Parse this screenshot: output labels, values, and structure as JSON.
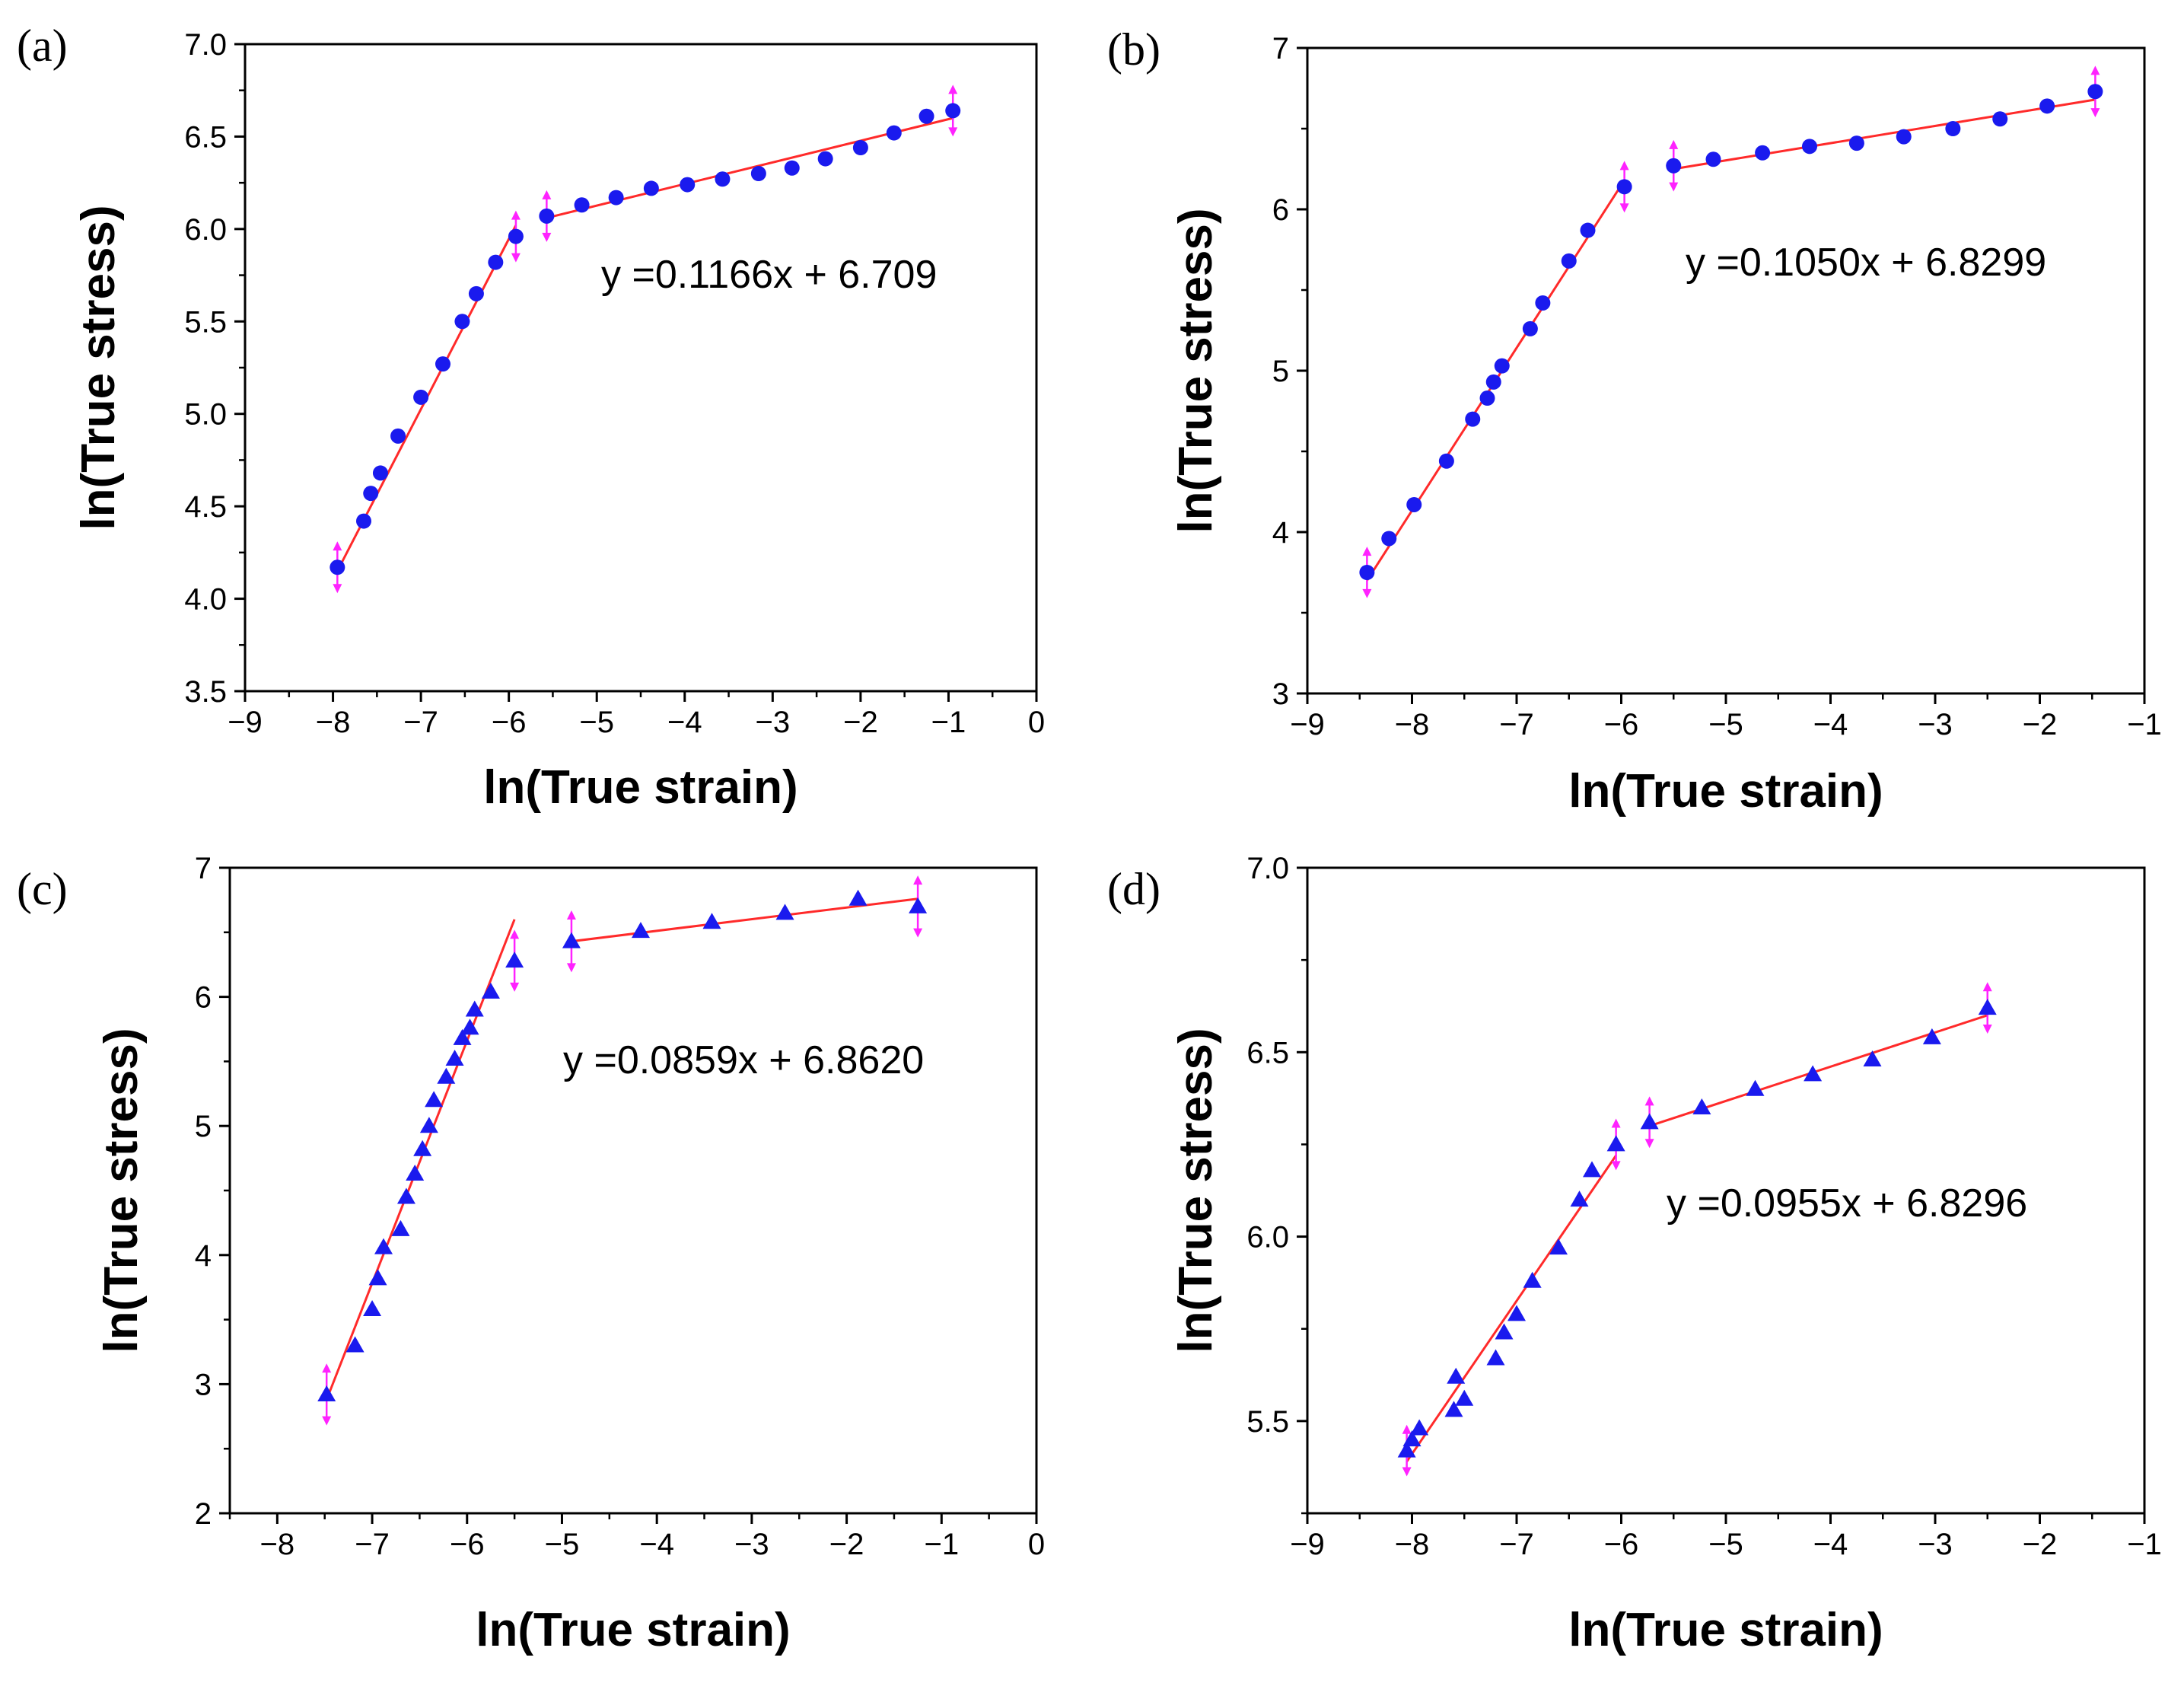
{
  "figure": {
    "panel_count": 4
  },
  "colors": {
    "fit_line": "#ff2a2a",
    "marker": "#1a1aee",
    "error_bar": "#ff22ff",
    "axis": "#000000"
  },
  "chart_data": [
    {
      "panel": "(a)",
      "type": "scatter",
      "marker": "circle",
      "xlabel": "ln(True strain)",
      "ylabel": "ln(True stress)",
      "xlim": [
        -9,
        0
      ],
      "ylim": [
        3.5,
        7.0
      ],
      "xticks": [
        -9,
        -8,
        -7,
        -6,
        -5,
        -4,
        -3,
        -2,
        -1,
        0
      ],
      "xtick_labels": [
        "−9",
        "−8",
        "−7",
        "−6",
        "−5",
        "−4",
        "−3",
        "−2",
        "−1",
        "0"
      ],
      "yticks": [
        3.5,
        4.0,
        4.5,
        5.0,
        5.5,
        6.0,
        6.5,
        7.0
      ],
      "ytick_labels": [
        "3.5",
        "4.0",
        "4.5",
        "5.0",
        "5.5",
        "6.0",
        "6.5",
        "7.0"
      ],
      "equation": "y =0.1166x + 6.709",
      "points": [
        [
          -7.95,
          4.17
        ],
        [
          -7.65,
          4.42
        ],
        [
          -7.57,
          4.57
        ],
        [
          -7.46,
          4.68
        ],
        [
          -7.26,
          4.88
        ],
        [
          -7.0,
          5.09
        ],
        [
          -6.75,
          5.27
        ],
        [
          -6.53,
          5.5
        ],
        [
          -6.37,
          5.65
        ],
        [
          -6.15,
          5.82
        ],
        [
          -5.92,
          5.96
        ],
        [
          -5.57,
          6.07
        ],
        [
          -5.17,
          6.13
        ],
        [
          -4.78,
          6.17
        ],
        [
          -4.38,
          6.22
        ],
        [
          -3.97,
          6.24
        ],
        [
          -3.57,
          6.27
        ],
        [
          -3.16,
          6.3
        ],
        [
          -2.78,
          6.33
        ],
        [
          -2.4,
          6.38
        ],
        [
          -2.0,
          6.44
        ],
        [
          -1.62,
          6.52
        ],
        [
          -1.25,
          6.61
        ],
        [
          -0.95,
          6.64
        ]
      ],
      "fit_lines": [
        {
          "x": [
            -7.95,
            -5.92
          ],
          "y": [
            4.15,
            6.02
          ]
        },
        {
          "x": [
            -5.57,
            -0.95
          ],
          "y": [
            6.06,
            6.6
          ]
        }
      ],
      "error_bar_points": [
        [
          -7.95,
          4.17,
          0.14
        ],
        [
          -5.92,
          5.96,
          0.14
        ],
        [
          -5.57,
          6.07,
          0.14
        ],
        [
          -0.95,
          6.64,
          0.14
        ]
      ]
    },
    {
      "panel": "(b)",
      "type": "scatter",
      "marker": "circle",
      "xlabel": "ln(True strain)",
      "ylabel": "ln(True stress)",
      "xlim": [
        -9,
        -1
      ],
      "ylim": [
        3,
        7
      ],
      "xticks": [
        -9,
        -8,
        -7,
        -6,
        -5,
        -4,
        -3,
        -2,
        -1
      ],
      "xtick_labels": [
        "−9",
        "−8",
        "−7",
        "−6",
        "−5",
        "−4",
        "−3",
        "−2",
        "−1"
      ],
      "yticks": [
        3,
        4,
        5,
        6,
        7
      ],
      "ytick_labels": [
        "3",
        "4",
        "5",
        "6",
        "7"
      ],
      "equation": "y =0.1050x + 6.8299",
      "points": [
        [
          -8.43,
          3.75
        ],
        [
          -8.22,
          3.96
        ],
        [
          -7.98,
          4.17
        ],
        [
          -7.67,
          4.44
        ],
        [
          -7.42,
          4.7
        ],
        [
          -7.28,
          4.83
        ],
        [
          -7.22,
          4.93
        ],
        [
          -7.14,
          5.03
        ],
        [
          -6.87,
          5.26
        ],
        [
          -6.75,
          5.42
        ],
        [
          -6.5,
          5.68
        ],
        [
          -6.32,
          5.87
        ],
        [
          -5.97,
          6.14
        ],
        [
          -5.5,
          6.27
        ],
        [
          -5.12,
          6.31
        ],
        [
          -4.65,
          6.35
        ],
        [
          -4.2,
          6.39
        ],
        [
          -3.75,
          6.41
        ],
        [
          -3.3,
          6.45
        ],
        [
          -2.83,
          6.5
        ],
        [
          -2.38,
          6.56
        ],
        [
          -1.93,
          6.64
        ],
        [
          -1.47,
          6.73
        ]
      ],
      "fit_lines": [
        {
          "x": [
            -8.43,
            -5.97
          ],
          "y": [
            3.7,
            6.18
          ]
        },
        {
          "x": [
            -5.5,
            -1.47
          ],
          "y": [
            6.25,
            6.68
          ]
        }
      ],
      "error_bar_points": [
        [
          -8.43,
          3.75,
          0.16
        ],
        [
          -5.97,
          6.14,
          0.16
        ],
        [
          -5.5,
          6.27,
          0.16
        ],
        [
          -1.47,
          6.73,
          0.16
        ]
      ]
    },
    {
      "panel": "(c)",
      "type": "scatter",
      "marker": "triangle",
      "xlabel": "ln(True strain)",
      "ylabel": "ln(True stress)",
      "xlim": [
        -8.5,
        0
      ],
      "ylim": [
        2,
        7
      ],
      "xticks": [
        -8,
        -7,
        -6,
        -5,
        -4,
        -3,
        -2,
        -1,
        0
      ],
      "xtick_labels": [
        "−8",
        "−7",
        "−6",
        "−5",
        "−4",
        "−3",
        "−2",
        "−1",
        "0"
      ],
      "yticks": [
        2,
        3,
        4,
        5,
        6,
        7
      ],
      "ytick_labels": [
        "2",
        "3",
        "4",
        "5",
        "6",
        "7"
      ],
      "equation": "y =0.0859x + 6.8620",
      "points": [
        [
          -7.48,
          2.92
        ],
        [
          -7.18,
          3.3
        ],
        [
          -7.0,
          3.58
        ],
        [
          -6.94,
          3.82
        ],
        [
          -6.88,
          4.06
        ],
        [
          -6.7,
          4.2
        ],
        [
          -6.64,
          4.45
        ],
        [
          -6.55,
          4.63
        ],
        [
          -6.47,
          4.82
        ],
        [
          -6.4,
          5.0
        ],
        [
          -6.35,
          5.2
        ],
        [
          -6.22,
          5.38
        ],
        [
          -6.13,
          5.52
        ],
        [
          -6.05,
          5.68
        ],
        [
          -5.97,
          5.76
        ],
        [
          -5.92,
          5.9
        ],
        [
          -5.75,
          6.04
        ],
        [
          -5.5,
          6.28
        ],
        [
          -4.9,
          6.43
        ],
        [
          -4.17,
          6.51
        ],
        [
          -3.42,
          6.58
        ],
        [
          -2.65,
          6.65
        ],
        [
          -1.88,
          6.76
        ],
        [
          -1.25,
          6.7
        ]
      ],
      "fit_lines": [
        {
          "x": [
            -7.48,
            -5.5
          ],
          "y": [
            2.88,
            6.6
          ]
        },
        {
          "x": [
            -4.9,
            -1.25
          ],
          "y": [
            6.43,
            6.76
          ]
        }
      ],
      "error_bar_points": [
        [
          -7.48,
          2.92,
          0.24
        ],
        [
          -5.5,
          6.28,
          0.24
        ],
        [
          -4.9,
          6.43,
          0.24
        ],
        [
          -1.25,
          6.7,
          0.24
        ]
      ]
    },
    {
      "panel": "(d)",
      "type": "scatter",
      "marker": "triangle",
      "xlabel": "ln(True strain)",
      "ylabel": "ln(True stress)",
      "xlim": [
        -9,
        -1
      ],
      "ylim": [
        5.25,
        7.0
      ],
      "xticks": [
        -9,
        -8,
        -7,
        -6,
        -5,
        -4,
        -3,
        -2,
        -1
      ],
      "xtick_labels": [
        "−9",
        "−8",
        "−7",
        "−6",
        "−5",
        "−4",
        "−3",
        "−2",
        "−1"
      ],
      "yticks": [
        5.5,
        6.0,
        6.5,
        7.0
      ],
      "ytick_labels": [
        "5.5",
        "6.0",
        "6.5",
        "7.0"
      ],
      "equation": "y =0.0955x + 6.8296",
      "points": [
        [
          -8.05,
          5.42
        ],
        [
          -8.0,
          5.45
        ],
        [
          -7.93,
          5.48
        ],
        [
          -7.6,
          5.53
        ],
        [
          -7.58,
          5.62
        ],
        [
          -7.5,
          5.56
        ],
        [
          -7.2,
          5.67
        ],
        [
          -7.12,
          5.74
        ],
        [
          -7.0,
          5.79
        ],
        [
          -6.85,
          5.88
        ],
        [
          -6.6,
          5.97
        ],
        [
          -6.4,
          6.1
        ],
        [
          -6.28,
          6.18
        ],
        [
          -6.05,
          6.25
        ],
        [
          -5.73,
          6.31
        ],
        [
          -5.23,
          6.35
        ],
        [
          -4.72,
          6.4
        ],
        [
          -4.17,
          6.44
        ],
        [
          -3.6,
          6.48
        ],
        [
          -3.03,
          6.54
        ],
        [
          -2.5,
          6.62
        ]
      ],
      "fit_lines": [
        {
          "x": [
            -8.05,
            -6.05
          ],
          "y": [
            5.39,
            6.22
          ]
        },
        {
          "x": [
            -5.73,
            -2.5
          ],
          "y": [
            6.3,
            6.6
          ]
        }
      ],
      "error_bar_points": [
        [
          -8.05,
          5.42,
          0.07
        ],
        [
          -6.05,
          6.25,
          0.07
        ],
        [
          -5.73,
          6.31,
          0.07
        ],
        [
          -2.5,
          6.62,
          0.07
        ]
      ]
    }
  ]
}
